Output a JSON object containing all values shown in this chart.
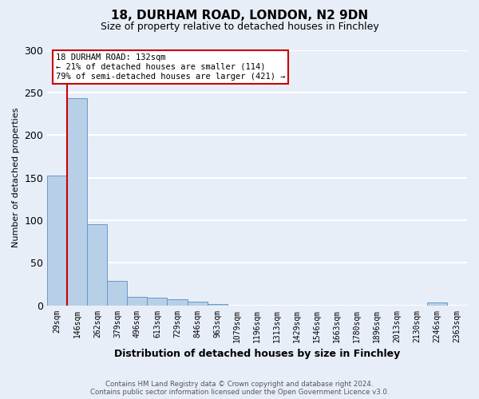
{
  "title_line1": "18, DURHAM ROAD, LONDON, N2 9DN",
  "title_line2": "Size of property relative to detached houses in Finchley",
  "xlabel": "Distribution of detached houses by size in Finchley",
  "ylabel": "Number of detached properties",
  "bar_labels": [
    "29sqm",
    "146sqm",
    "262sqm",
    "379sqm",
    "496sqm",
    "613sqm",
    "729sqm",
    "846sqm",
    "963sqm",
    "1079sqm",
    "1196sqm",
    "1313sqm",
    "1429sqm",
    "1546sqm",
    "1663sqm",
    "1780sqm",
    "1896sqm",
    "2013sqm",
    "2130sqm",
    "2246sqm",
    "2363sqm"
  ],
  "bar_values": [
    152,
    243,
    95,
    29,
    10,
    9,
    7,
    4,
    2,
    0,
    0,
    0,
    0,
    0,
    0,
    0,
    0,
    0,
    0,
    3,
    0
  ],
  "bar_color": "#b8cfe8",
  "bar_edge_color": "#6699cc",
  "property_line_color": "#cc0000",
  "ylim": [
    0,
    300
  ],
  "yticks": [
    0,
    50,
    100,
    150,
    200,
    250,
    300
  ],
  "annotation_title": "18 DURHAM ROAD: 132sqm",
  "annotation_line1": "← 21% of detached houses are smaller (114)",
  "annotation_line2": "79% of semi-detached houses are larger (421) →",
  "annotation_box_color": "#ffffff",
  "annotation_box_edge": "#cc0000",
  "footer_line1": "Contains HM Land Registry data © Crown copyright and database right 2024.",
  "footer_line2": "Contains public sector information licensed under the Open Government Licence v3.0.",
  "background_color": "#e8eef8",
  "grid_color": "#ffffff"
}
